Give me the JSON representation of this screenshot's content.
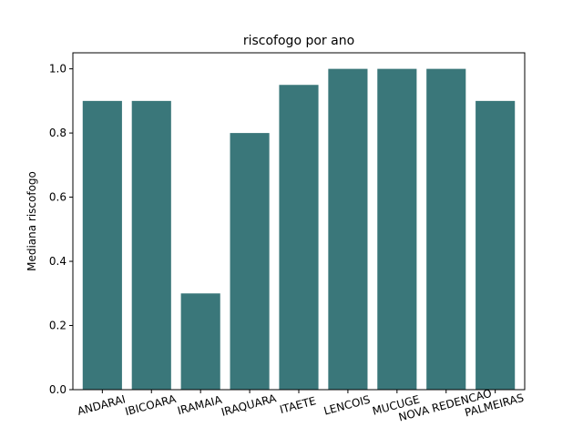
{
  "chart_data": {
    "type": "bar",
    "title": "riscofogo por ano",
    "xlabel": "",
    "ylabel": "Mediana riscofogo",
    "categories": [
      "ANDARAI",
      "IBICOARA",
      "IRAMAIA",
      "IRAQUARA",
      "ITAETE",
      "LENCOIS",
      "MUCUGE",
      "NOVA REDENCAO",
      "PALMEIRAS"
    ],
    "values": [
      0.9,
      0.9,
      0.3,
      0.8,
      0.95,
      1.0,
      1.0,
      1.0,
      0.9
    ],
    "ylim": [
      0,
      1.05
    ],
    "yticks": [
      "0.0",
      "0.2",
      "0.4",
      "0.6",
      "0.8",
      "1.0"
    ],
    "xtick_rotation": "15 degrees",
    "grid": false,
    "legend": "none",
    "bar_color": "#3a777a"
  }
}
